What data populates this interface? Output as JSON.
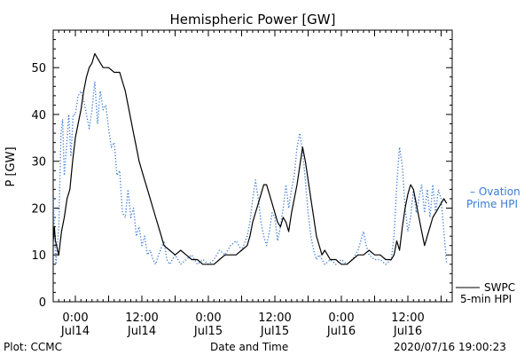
{
  "chart_data": {
    "type": "line",
    "title": "Hemispheric Power [GW]",
    "xlabel": "Date and Time",
    "ylabel": "P [GW]",
    "xlim": [
      -4,
      68
    ],
    "ylim": [
      0,
      58
    ],
    "y_ticks": [
      0,
      10,
      20,
      30,
      40,
      50
    ],
    "grid": false,
    "x_tick_labels": [
      {
        "h": 0,
        "time": "0:00",
        "date": "Jul14"
      },
      {
        "h": 12,
        "time": "12:00",
        "date": "Jul14"
      },
      {
        "h": 24,
        "time": "0:00",
        "date": "Jul15"
      },
      {
        "h": 36,
        "time": "12:00",
        "date": "Jul15"
      },
      {
        "h": 48,
        "time": "0:00",
        "date": "Jul16"
      },
      {
        "h": 60,
        "time": "12:00",
        "date": "Jul16"
      }
    ],
    "series": [
      {
        "name": "SWPC 5-min HPI",
        "color": "#000000",
        "style": "solid",
        "points": [
          [
            -4,
            13
          ],
          [
            -3.8,
            16
          ],
          [
            -3.6,
            13
          ],
          [
            -3.4,
            12
          ],
          [
            -3.2,
            11
          ],
          [
            -3,
            10
          ],
          [
            -2.8,
            12
          ],
          [
            -2.5,
            15
          ],
          [
            -2,
            18
          ],
          [
            -1.5,
            22
          ],
          [
            -1,
            24
          ],
          [
            -0.5,
            30
          ],
          [
            0,
            35
          ],
          [
            0.5,
            38
          ],
          [
            1,
            41
          ],
          [
            1.5,
            45
          ],
          [
            2,
            48
          ],
          [
            2.5,
            50
          ],
          [
            3,
            51
          ],
          [
            3.5,
            53
          ],
          [
            4,
            52
          ],
          [
            4.5,
            51
          ],
          [
            5,
            50
          ],
          [
            6,
            50
          ],
          [
            7,
            49
          ],
          [
            8,
            49
          ],
          [
            8.5,
            47
          ],
          [
            9,
            45
          ],
          [
            9.5,
            42
          ],
          [
            10,
            39
          ],
          [
            10.5,
            36
          ],
          [
            11,
            33
          ],
          [
            11.5,
            30
          ],
          [
            12,
            28
          ],
          [
            12.5,
            26
          ],
          [
            13,
            24
          ],
          [
            13.5,
            22
          ],
          [
            14,
            20
          ],
          [
            14.5,
            18
          ],
          [
            15,
            16
          ],
          [
            15.5,
            14
          ],
          [
            16,
            12
          ],
          [
            17,
            11
          ],
          [
            18,
            10
          ],
          [
            19,
            11
          ],
          [
            20,
            10
          ],
          [
            21,
            9
          ],
          [
            22,
            9
          ],
          [
            23,
            8
          ],
          [
            24,
            8
          ],
          [
            25,
            8
          ],
          [
            26,
            9
          ],
          [
            27,
            10
          ],
          [
            28,
            10
          ],
          [
            29,
            10
          ],
          [
            30,
            11
          ],
          [
            31,
            12
          ],
          [
            31.5,
            14
          ],
          [
            32,
            17
          ],
          [
            32.5,
            19
          ],
          [
            33,
            21
          ],
          [
            33.5,
            23
          ],
          [
            34,
            25
          ],
          [
            34.5,
            25
          ],
          [
            35,
            23
          ],
          [
            35.5,
            21
          ],
          [
            36,
            19
          ],
          [
            36.5,
            17
          ],
          [
            37,
            16
          ],
          [
            37.5,
            18
          ],
          [
            38,
            17
          ],
          [
            38.5,
            15
          ],
          [
            39,
            19
          ],
          [
            39.5,
            22
          ],
          [
            40,
            25
          ],
          [
            40.5,
            29
          ],
          [
            41,
            33
          ],
          [
            41.5,
            30
          ],
          [
            42,
            26
          ],
          [
            42.5,
            22
          ],
          [
            43,
            18
          ],
          [
            43.5,
            14
          ],
          [
            44,
            12
          ],
          [
            44.5,
            10
          ],
          [
            45,
            11
          ],
          [
            45.5,
            10
          ],
          [
            46,
            9
          ],
          [
            47,
            9
          ],
          [
            48,
            8
          ],
          [
            49,
            8
          ],
          [
            50,
            9
          ],
          [
            51,
            10
          ],
          [
            52,
            10
          ],
          [
            53,
            11
          ],
          [
            54,
            10
          ],
          [
            55,
            10
          ],
          [
            56,
            9
          ],
          [
            57,
            9
          ],
          [
            57.5,
            10
          ],
          [
            58,
            13
          ],
          [
            58.5,
            11
          ],
          [
            59,
            16
          ],
          [
            59.5,
            20
          ],
          [
            60,
            23
          ],
          [
            60.5,
            25
          ],
          [
            61,
            24
          ],
          [
            61.5,
            21
          ],
          [
            62,
            18
          ],
          [
            62.5,
            15
          ],
          [
            63,
            12
          ],
          [
            63.5,
            14
          ],
          [
            64,
            16
          ],
          [
            64.5,
            18
          ],
          [
            65,
            19
          ],
          [
            65.5,
            20
          ],
          [
            66,
            21
          ],
          [
            66.5,
            22
          ],
          [
            67,
            21
          ]
        ]
      },
      {
        "name": "Ovation Prime HPI",
        "color": "#3a7bd5",
        "style": "dotted",
        "points": [
          [
            -4,
            22
          ],
          [
            -3.5,
            8
          ],
          [
            -3,
            16
          ],
          [
            -2.6,
            36
          ],
          [
            -2.3,
            39
          ],
          [
            -2,
            27
          ],
          [
            -1.6,
            33
          ],
          [
            -1.2,
            40
          ],
          [
            -0.8,
            31
          ],
          [
            -0.4,
            40
          ],
          [
            0,
            40
          ],
          [
            0.5,
            44
          ],
          [
            1,
            45
          ],
          [
            1.5,
            43
          ],
          [
            2,
            40
          ],
          [
            2.5,
            37
          ],
          [
            3,
            41
          ],
          [
            3.5,
            47
          ],
          [
            4,
            38
          ],
          [
            4.5,
            45
          ],
          [
            5,
            41
          ],
          [
            5.5,
            42
          ],
          [
            6,
            37
          ],
          [
            6.5,
            33
          ],
          [
            7,
            34
          ],
          [
            7.5,
            27
          ],
          [
            8,
            28
          ],
          [
            8.5,
            19
          ],
          [
            9,
            18
          ],
          [
            9.5,
            24
          ],
          [
            10,
            18
          ],
          [
            10.5,
            20
          ],
          [
            11,
            14
          ],
          [
            11.5,
            16
          ],
          [
            12,
            12
          ],
          [
            12.5,
            14
          ],
          [
            13,
            10
          ],
          [
            13.5,
            11
          ],
          [
            14,
            9
          ],
          [
            14.5,
            8
          ],
          [
            15,
            10
          ],
          [
            16,
            13
          ],
          [
            16.5,
            9
          ],
          [
            17,
            8
          ],
          [
            18,
            10
          ],
          [
            19,
            8
          ],
          [
            20,
            9
          ],
          [
            21,
            10
          ],
          [
            22,
            8
          ],
          [
            23,
            9
          ],
          [
            24,
            8
          ],
          [
            25,
            9
          ],
          [
            26,
            11
          ],
          [
            27,
            10
          ],
          [
            28,
            12
          ],
          [
            29,
            13
          ],
          [
            30,
            11
          ],
          [
            31,
            14
          ],
          [
            31.5,
            17
          ],
          [
            32,
            22
          ],
          [
            32.5,
            26
          ],
          [
            33,
            22
          ],
          [
            33.5,
            17
          ],
          [
            34,
            14
          ],
          [
            34.5,
            12
          ],
          [
            35,
            15
          ],
          [
            35.5,
            19
          ],
          [
            36,
            18
          ],
          [
            36.5,
            13
          ],
          [
            37,
            16
          ],
          [
            37.5,
            20
          ],
          [
            38,
            25
          ],
          [
            38.5,
            20
          ],
          [
            39,
            24
          ],
          [
            39.5,
            27
          ],
          [
            40,
            33
          ],
          [
            40.5,
            36
          ],
          [
            41,
            32
          ],
          [
            41.5,
            26
          ],
          [
            42,
            19
          ],
          [
            42.5,
            14
          ],
          [
            43,
            11
          ],
          [
            43.5,
            9
          ],
          [
            44,
            10
          ],
          [
            45,
            8
          ],
          [
            46,
            9
          ],
          [
            47,
            8
          ],
          [
            48,
            9
          ],
          [
            49,
            8
          ],
          [
            50,
            9
          ],
          [
            51,
            11
          ],
          [
            52,
            15
          ],
          [
            52.5,
            12
          ],
          [
            53,
            10
          ],
          [
            54,
            9
          ],
          [
            55,
            9
          ],
          [
            56,
            8
          ],
          [
            57,
            9
          ],
          [
            57.5,
            14
          ],
          [
            58,
            25
          ],
          [
            58.5,
            33
          ],
          [
            59,
            29
          ],
          [
            59.5,
            20
          ],
          [
            60,
            15
          ],
          [
            60.5,
            18
          ],
          [
            61,
            24
          ],
          [
            61.5,
            19
          ],
          [
            62,
            22
          ],
          [
            62.5,
            25
          ],
          [
            63,
            19
          ],
          [
            63.5,
            24
          ],
          [
            64,
            18
          ],
          [
            64.5,
            25
          ],
          [
            65,
            19
          ],
          [
            65.5,
            24
          ],
          [
            66,
            22
          ],
          [
            66.5,
            15
          ],
          [
            67,
            8
          ]
        ]
      }
    ]
  },
  "legend": {
    "ovation_line1": "– Ovation",
    "ovation_line2": "Prime HPI",
    "swpc_line1": "SWPC",
    "swpc_line2": "5-min HPI"
  },
  "footer": {
    "left": "Plot: CCMC",
    "center": "Date and Time",
    "right": "2020/07/16 19:00:23"
  }
}
